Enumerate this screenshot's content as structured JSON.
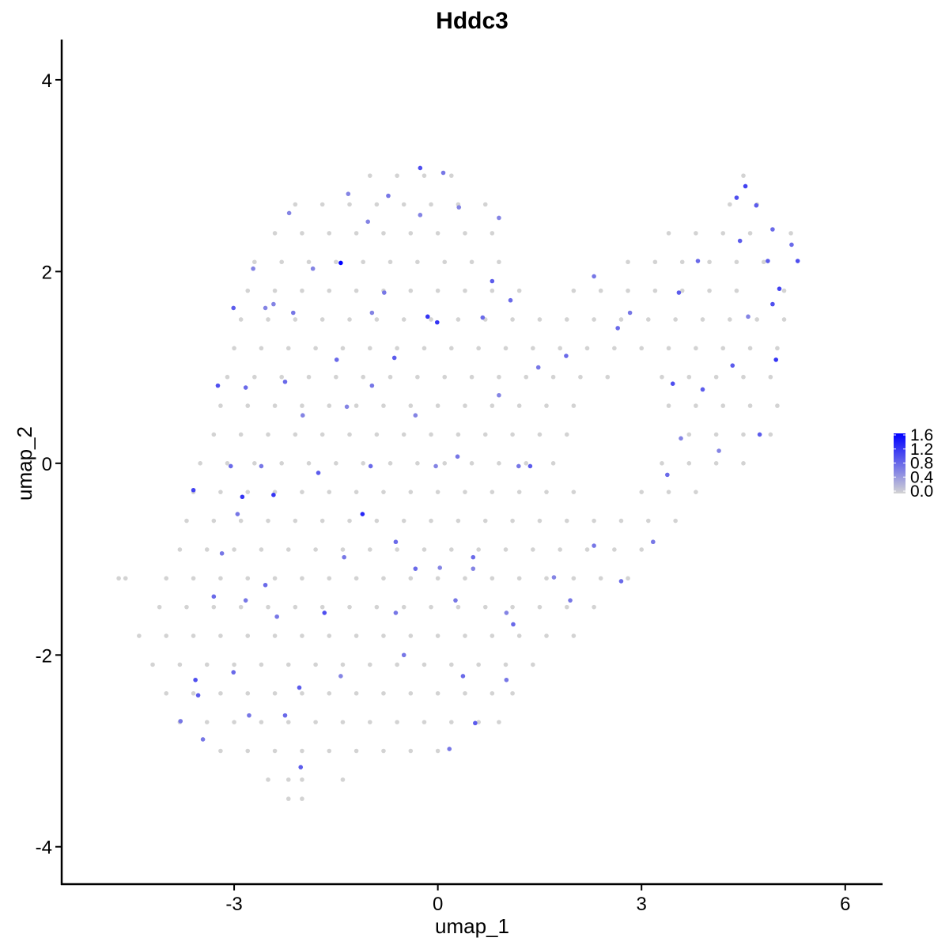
{
  "chart_data": {
    "type": "scatter",
    "title": "Hddc3",
    "xlabel": "umap_1",
    "ylabel": "umap_2",
    "xlim": [
      -5.54,
      6.55
    ],
    "ylim": [
      -4.39,
      4.42
    ],
    "xticks": [
      "-3",
      "0",
      "3",
      "6"
    ],
    "yticks": [
      "-4",
      "-2",
      "0",
      "2",
      "4"
    ],
    "grid": false,
    "color_scale": {
      "low": "#D3D3D3",
      "high": "#0000FF",
      "min": 0.0,
      "max": 1.6
    },
    "legend": {
      "placement": "right",
      "labels": [
        "1.6",
        "1.2",
        "0.8",
        "0.4",
        "0.0"
      ]
    },
    "background_points": [
      {
        "y": 3.0,
        "x": [
          -1.0,
          -0.6,
          -0.2,
          0.2,
          4.5
        ]
      },
      {
        "y": 2.7,
        "x": [
          -2.1,
          -1.7,
          -1.3,
          -0.9,
          -0.5,
          -0.1,
          0.3,
          0.7,
          4.3,
          4.7
        ]
      },
      {
        "y": 2.4,
        "x": [
          -2.4,
          -2.0,
          -1.6,
          -1.2,
          -0.8,
          -0.4,
          0.0,
          0.4,
          0.8,
          3.4,
          3.8,
          4.2,
          4.6,
          5.2
        ]
      },
      {
        "y": 2.1,
        "x": [
          -2.7,
          -2.3,
          -1.9,
          -1.5,
          -1.1,
          -0.7,
          -0.3,
          0.1,
          0.5,
          0.9,
          2.8,
          3.2,
          3.6,
          4.0,
          4.4,
          4.8
        ]
      },
      {
        "y": 1.8,
        "x": [
          -2.8,
          -2.4,
          -2.0,
          -1.6,
          -1.2,
          -0.8,
          -0.4,
          0.0,
          0.4,
          0.8,
          1.2,
          2.0,
          2.4,
          2.8,
          3.2,
          3.6,
          4.0,
          4.4,
          5.1
        ]
      },
      {
        "y": 1.5,
        "x": [
          -2.9,
          -2.5,
          -2.1,
          -1.7,
          -1.3,
          -0.9,
          -0.5,
          -0.1,
          0.3,
          0.7,
          1.1,
          1.5,
          1.9,
          2.3,
          2.7,
          3.1,
          3.5,
          3.9,
          4.3,
          4.7,
          5.1
        ]
      },
      {
        "y": 1.2,
        "x": [
          -3.0,
          -2.6,
          -2.2,
          -1.8,
          -1.4,
          -1.0,
          -0.6,
          -0.2,
          0.2,
          0.6,
          1.0,
          1.4,
          1.8,
          2.2,
          2.6,
          3.0,
          3.4,
          3.8,
          4.2,
          4.6,
          5.0
        ]
      },
      {
        "y": 0.9,
        "x": [
          -3.1,
          -2.7,
          -2.3,
          -1.9,
          -1.5,
          -1.1,
          -0.7,
          -0.3,
          0.1,
          0.5,
          0.9,
          1.3,
          1.7,
          2.1,
          2.5,
          3.3,
          3.7,
          4.1,
          4.5,
          4.9
        ]
      },
      {
        "y": 0.6,
        "x": [
          -3.2,
          -2.8,
          -2.4,
          -2.0,
          -1.6,
          -1.2,
          -0.8,
          -0.4,
          0.0,
          0.4,
          0.8,
          1.2,
          1.6,
          2.0,
          3.4,
          3.8,
          4.2,
          4.6,
          5.0
        ]
      },
      {
        "y": 0.3,
        "x": [
          -3.3,
          -2.9,
          -2.5,
          -2.1,
          -1.7,
          -1.3,
          -0.9,
          -0.5,
          -0.1,
          0.3,
          0.7,
          1.1,
          1.5,
          1.9,
          3.7,
          4.1,
          4.5,
          4.9
        ]
      },
      {
        "y": 0.0,
        "x": [
          -3.5,
          -3.1,
          -2.7,
          -2.3,
          -1.9,
          -1.5,
          -1.1,
          -0.7,
          -0.3,
          0.1,
          0.5,
          0.9,
          1.3,
          1.7,
          3.3,
          3.7,
          4.1,
          4.5
        ]
      },
      {
        "y": -0.3,
        "x": [
          -3.6,
          -3.2,
          -2.8,
          -2.4,
          -2.0,
          -1.6,
          -1.2,
          -0.8,
          -0.4,
          0.0,
          0.4,
          0.8,
          1.2,
          1.6,
          2.0,
          3.0,
          3.4,
          3.8
        ]
      },
      {
        "y": -0.6,
        "x": [
          -3.7,
          -3.3,
          -2.9,
          -2.5,
          -2.1,
          -1.7,
          -1.3,
          -0.9,
          -0.5,
          -0.1,
          0.3,
          0.7,
          1.1,
          1.5,
          1.9,
          2.3,
          2.7,
          3.1,
          3.5
        ]
      },
      {
        "y": -0.9,
        "x": [
          -3.8,
          -3.4,
          -3.0,
          -2.6,
          -2.2,
          -1.8,
          -1.4,
          -1.0,
          -0.6,
          -0.2,
          0.2,
          0.6,
          1.0,
          1.4,
          1.8,
          2.2,
          2.6,
          3.0
        ]
      },
      {
        "y": -1.2,
        "x": [
          -4.7,
          -4.6,
          -4.0,
          -3.6,
          -3.2,
          -2.8,
          -2.4,
          -2.0,
          -1.6,
          -1.2,
          -0.8,
          -0.4,
          0.0,
          0.4,
          0.8,
          1.2,
          1.6,
          2.0,
          2.4,
          2.8
        ]
      },
      {
        "y": -1.5,
        "x": [
          -4.1,
          -3.7,
          -3.3,
          -2.9,
          -2.5,
          -2.1,
          -1.7,
          -1.3,
          -0.9,
          -0.5,
          -0.1,
          0.3,
          0.7,
          1.1,
          1.5,
          1.9,
          2.3
        ]
      },
      {
        "y": -1.8,
        "x": [
          -4.4,
          -4.0,
          -3.6,
          -3.2,
          -2.8,
          -2.4,
          -2.0,
          -1.6,
          -1.2,
          -0.8,
          -0.4,
          0.0,
          0.4,
          0.8,
          1.2,
          1.6,
          2.0
        ]
      },
      {
        "y": -2.1,
        "x": [
          -4.2,
          -3.8,
          -3.4,
          -3.0,
          -2.6,
          -2.2,
          -1.8,
          -1.4,
          -1.0,
          -0.6,
          -0.2,
          0.2,
          0.6,
          1.0,
          1.4
        ]
      },
      {
        "y": -2.4,
        "x": [
          -4.0,
          -3.6,
          -3.2,
          -2.8,
          -2.4,
          -2.0,
          -1.6,
          -1.2,
          -0.8,
          -0.4,
          0.0,
          0.4,
          0.8,
          1.1
        ]
      },
      {
        "y": -2.7,
        "x": [
          -3.8,
          -3.4,
          -3.0,
          -2.6,
          -2.2,
          -1.8,
          -1.4,
          -1.0,
          -0.6,
          -0.2,
          0.2,
          0.6,
          0.9
        ]
      },
      {
        "y": -3.0,
        "x": [
          -3.2,
          -2.8,
          -2.4,
          -2.0,
          -1.6,
          -1.2,
          -0.8,
          -0.4,
          0.0
        ]
      },
      {
        "y": -3.3,
        "x": [
          -2.5,
          -2.2,
          -2.0,
          -1.4
        ]
      },
      {
        "y": -3.5,
        "x": [
          -2.2,
          -2.0
        ]
      }
    ],
    "expressing_points": [
      [
        -1.43,
        2.09,
        1.6
      ],
      [
        -0.15,
        1.53,
        1.2
      ],
      [
        -0.01,
        1.47,
        1.2
      ],
      [
        -1.11,
        -0.53,
        1.3
      ],
      [
        -3.24,
        0.81,
        1.0
      ],
      [
        -3.6,
        -0.28,
        1.1
      ],
      [
        -2.88,
        -0.35,
        1.2
      ],
      [
        -2.42,
        -0.33,
        1.2
      ],
      [
        4.98,
        1.08,
        1.2
      ],
      [
        4.53,
        2.89,
        1.1
      ],
      [
        5.3,
        2.11,
        1.0
      ],
      [
        5.03,
        1.82,
        1.1
      ],
      [
        4.93,
        1.66,
        1.0
      ],
      [
        -0.26,
        3.08,
        1.0
      ],
      [
        0.8,
        1.9,
        0.9
      ],
      [
        1.07,
        1.7,
        0.8
      ],
      [
        0.66,
        1.52,
        0.8
      ],
      [
        -0.64,
        1.1,
        0.9
      ],
      [
        -1.49,
        1.08,
        0.8
      ],
      [
        -2.25,
        0.85,
        0.8
      ],
      [
        -2.83,
        0.79,
        0.8
      ],
      [
        -3.05,
        -0.03,
        0.8
      ],
      [
        -2.6,
        -0.03,
        0.7
      ],
      [
        -1.76,
        -0.1,
        0.9
      ],
      [
        -0.99,
        -0.03,
        0.8
      ],
      [
        -0.03,
        -0.03,
        0.6
      ],
      [
        0.29,
        0.07,
        0.7
      ],
      [
        1.19,
        -0.03,
        0.7
      ],
      [
        1.36,
        -0.03,
        0.9
      ],
      [
        -3.57,
        -2.26,
        1.0
      ],
      [
        -3.53,
        -2.42,
        0.9
      ],
      [
        -3.3,
        -1.39,
        0.8
      ],
      [
        -2.02,
        -3.17,
        0.9
      ],
      [
        -1.67,
        -1.56,
        1.0
      ],
      [
        -2.04,
        -2.34,
        0.9
      ],
      [
        0.17,
        -2.98,
        0.7
      ],
      [
        0.55,
        -2.71,
        0.9
      ],
      [
        0.37,
        -2.22,
        0.8
      ],
      [
        -0.5,
        -2.0,
        0.7
      ],
      [
        1.01,
        -2.26,
        0.7
      ],
      [
        1.11,
        -1.68,
        0.8
      ],
      [
        1.01,
        -1.56,
        0.6
      ],
      [
        0.52,
        -0.98,
        0.8
      ],
      [
        -0.33,
        -1.1,
        0.8
      ],
      [
        -0.62,
        -0.82,
        0.8
      ],
      [
        -1.38,
        -0.98,
        0.7
      ],
      [
        -2.54,
        -1.27,
        0.8
      ],
      [
        -3.01,
        -2.18,
        0.8
      ],
      [
        -2.78,
        -2.63,
        0.7
      ],
      [
        -3.79,
        -2.69,
        0.7
      ],
      [
        -3.46,
        -2.88,
        0.7
      ],
      [
        -2.25,
        -2.63,
        0.8
      ],
      [
        2.3,
        -0.86,
        0.7
      ],
      [
        3.17,
        -0.82,
        0.7
      ],
      [
        2.7,
        -1.23,
        0.8
      ],
      [
        1.95,
        -1.43,
        0.7
      ],
      [
        3.38,
        -0.12,
        0.8
      ],
      [
        3.58,
        0.26,
        0.6
      ],
      [
        3.46,
        0.83,
        1.0
      ],
      [
        3.9,
        0.77,
        0.9
      ],
      [
        4.34,
        1.02,
        0.9
      ],
      [
        4.74,
        0.3,
        0.9
      ],
      [
        4.14,
        0.13,
        0.6
      ],
      [
        3.55,
        1.78,
        0.9
      ],
      [
        3.83,
        2.11,
        0.8
      ],
      [
        2.83,
        1.57,
        0.7
      ],
      [
        2.65,
        1.41,
        0.8
      ],
      [
        2.3,
        1.95,
        0.7
      ],
      [
        1.89,
        1.12,
        0.8
      ],
      [
        1.48,
        1.0,
        0.7
      ],
      [
        0.9,
        0.71,
        0.6
      ],
      [
        -0.33,
        0.5,
        0.6
      ],
      [
        -0.97,
        0.81,
        0.7
      ],
      [
        -1.34,
        0.59,
        0.6
      ],
      [
        -1.99,
        0.5,
        0.6
      ],
      [
        -2.95,
        -0.53,
        0.7
      ],
      [
        -3.18,
        -0.94,
        0.7
      ],
      [
        -2.83,
        -1.43,
        0.7
      ],
      [
        -2.37,
        -1.6,
        0.7
      ],
      [
        -1.43,
        -2.22,
        0.6
      ],
      [
        -0.62,
        -1.56,
        0.7
      ],
      [
        0.03,
        -1.09,
        0.6
      ],
      [
        0.26,
        -1.43,
        0.7
      ],
      [
        0.52,
        -1.1,
        0.6
      ],
      [
        1.71,
        -1.19,
        0.6
      ],
      [
        4.45,
        2.32,
        0.9
      ],
      [
        4.69,
        2.69,
        0.9
      ],
      [
        4.4,
        2.77,
        1.0
      ],
      [
        4.93,
        2.44,
        0.8
      ],
      [
        4.86,
        2.11,
        0.9
      ],
      [
        5.21,
        2.28,
        0.8
      ],
      [
        4.57,
        1.53,
        0.6
      ],
      [
        -2.13,
        1.57,
        0.7
      ],
      [
        -2.42,
        1.66,
        0.6
      ],
      [
        -1.84,
        2.03,
        0.6
      ],
      [
        -2.54,
        1.62,
        0.6
      ],
      [
        -2.19,
        2.61,
        0.6
      ],
      [
        -1.32,
        2.81,
        0.6
      ],
      [
        -0.73,
        2.79,
        0.7
      ],
      [
        0.08,
        3.03,
        0.7
      ],
      [
        -1.03,
        2.52,
        0.6
      ],
      [
        -0.26,
        2.59,
        0.6
      ],
      [
        0.31,
        2.67,
        0.6
      ],
      [
        0.9,
        2.56,
        0.6
      ],
      [
        -0.79,
        1.78,
        0.7
      ],
      [
        -0.97,
        1.57,
        0.6
      ],
      [
        -3.01,
        1.62,
        0.9
      ],
      [
        -2.72,
        2.03,
        0.6
      ]
    ]
  }
}
